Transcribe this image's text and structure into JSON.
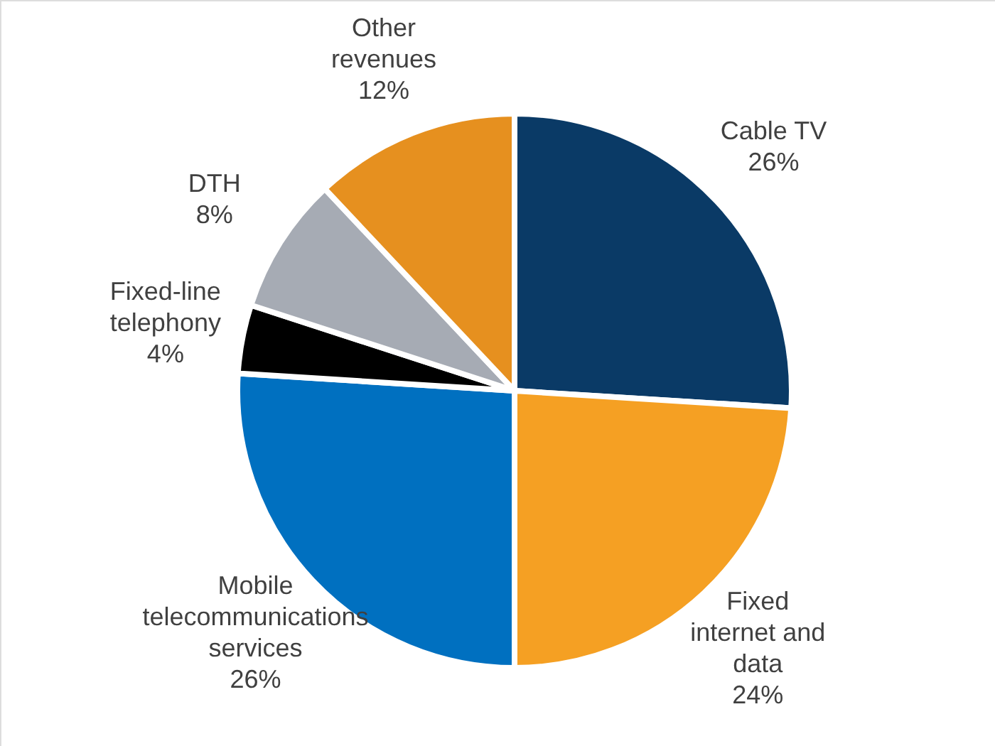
{
  "chart_data": {
    "type": "pie",
    "categories": [
      "Cable TV",
      "Fixed internet and data",
      "Mobile telecommunications services",
      "Fixed-line telephony",
      "DTH",
      "Other revenues"
    ],
    "values": [
      26,
      24,
      26,
      4,
      8,
      12
    ],
    "value_labels": [
      "26%",
      "24%",
      "26%",
      "4%",
      "8%",
      "12%"
    ],
    "colors": [
      "#0a3a66",
      "#f5a023",
      "#0070c0",
      "#000000",
      "#a6abb4",
      "#e6901f"
    ]
  }
}
